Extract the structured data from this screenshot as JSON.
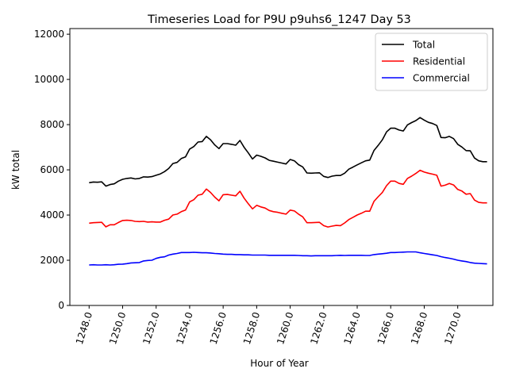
{
  "chart_data": {
    "type": "line",
    "title": "Timeseries Load for P9U p9uhs6_1247  Day 53",
    "xlabel": "Hour of Year",
    "ylabel": "kW total",
    "xlim": [
      1246.85,
      1272.1
    ],
    "ylim": [
      0,
      12250
    ],
    "xticks": [
      1248,
      1250,
      1252,
      1254,
      1256,
      1258,
      1260,
      1262,
      1264,
      1266,
      1268,
      1270
    ],
    "xtick_labels": [
      "1248.0",
      "1250.0",
      "1252.0",
      "1254.0",
      "1256.0",
      "1258.0",
      "1260.0",
      "1262.0",
      "1264.0",
      "1266.0",
      "1268.0",
      "1270.0"
    ],
    "yticks": [
      0,
      2000,
      4000,
      6000,
      8000,
      10000,
      12000
    ],
    "ytick_labels": [
      "0",
      "2000",
      "4000",
      "6000",
      "8000",
      "10000",
      "12000"
    ],
    "legend_position": "top-right",
    "grid": false,
    "x": [
      1248.0,
      1248.25,
      1248.5,
      1248.75,
      1249.0,
      1249.25,
      1249.5,
      1249.75,
      1250.0,
      1250.25,
      1250.5,
      1250.75,
      1251.0,
      1251.25,
      1251.5,
      1251.75,
      1252.0,
      1252.25,
      1252.5,
      1252.75,
      1253.0,
      1253.25,
      1253.5,
      1253.75,
      1254.0,
      1254.25,
      1254.5,
      1254.75,
      1255.0,
      1255.25,
      1255.5,
      1255.75,
      1256.0,
      1256.25,
      1256.5,
      1256.75,
      1257.0,
      1257.25,
      1257.5,
      1257.75,
      1258.0,
      1258.25,
      1258.5,
      1258.75,
      1259.0,
      1259.25,
      1259.5,
      1259.75,
      1260.0,
      1260.25,
      1260.5,
      1260.75,
      1261.0,
      1261.25,
      1261.5,
      1261.75,
      1262.0,
      1262.25,
      1262.5,
      1262.75,
      1263.0,
      1263.25,
      1263.5,
      1263.75,
      1264.0,
      1264.25,
      1264.5,
      1264.75,
      1265.0,
      1265.25,
      1265.5,
      1265.75,
      1266.0,
      1266.25,
      1266.5,
      1266.75,
      1267.0,
      1267.25,
      1267.5,
      1267.75,
      1268.0,
      1268.25,
      1268.5,
      1268.75,
      1269.0,
      1269.25,
      1269.5,
      1269.75,
      1270.0,
      1270.25,
      1270.5,
      1270.75,
      1271.0,
      1271.25,
      1271.5,
      1271.75
    ],
    "series": [
      {
        "name": "Total",
        "color": "#000000",
        "values": [
          5430,
          5460,
          5450,
          5470,
          5280,
          5350,
          5380,
          5500,
          5580,
          5620,
          5640,
          5600,
          5620,
          5690,
          5680,
          5700,
          5760,
          5820,
          5920,
          6060,
          6280,
          6330,
          6500,
          6570,
          6920,
          7030,
          7230,
          7250,
          7480,
          7330,
          7100,
          6940,
          7160,
          7160,
          7130,
          7090,
          7300,
          7000,
          6750,
          6480,
          6650,
          6600,
          6530,
          6420,
          6380,
          6340,
          6300,
          6260,
          6460,
          6400,
          6230,
          6130,
          5860,
          5850,
          5860,
          5870,
          5710,
          5660,
          5720,
          5750,
          5750,
          5850,
          6030,
          6120,
          6220,
          6310,
          6400,
          6430,
          6850,
          7080,
          7330,
          7680,
          7840,
          7840,
          7760,
          7720,
          7990,
          8090,
          8180,
          8310,
          8200,
          8100,
          8050,
          7960,
          7430,
          7420,
          7480,
          7380,
          7130,
          7010,
          6850,
          6840,
          6520,
          6400,
          6360,
          6360
        ]
      },
      {
        "name": "Residential",
        "color": "#ff0000",
        "values": [
          3640,
          3660,
          3670,
          3680,
          3480,
          3570,
          3570,
          3670,
          3760,
          3770,
          3760,
          3720,
          3710,
          3720,
          3690,
          3700,
          3690,
          3690,
          3770,
          3820,
          4000,
          4040,
          4150,
          4220,
          4580,
          4680,
          4880,
          4920,
          5150,
          5000,
          4790,
          4630,
          4900,
          4910,
          4880,
          4850,
          5050,
          4750,
          4500,
          4270,
          4430,
          4360,
          4310,
          4200,
          4150,
          4120,
          4080,
          4040,
          4220,
          4180,
          4040,
          3920,
          3660,
          3660,
          3670,
          3680,
          3530,
          3470,
          3510,
          3540,
          3530,
          3650,
          3800,
          3900,
          4000,
          4080,
          4170,
          4170,
          4600,
          4810,
          5000,
          5300,
          5500,
          5500,
          5400,
          5360,
          5620,
          5720,
          5840,
          5980,
          5900,
          5850,
          5810,
          5760,
          5280,
          5320,
          5400,
          5330,
          5130,
          5060,
          4920,
          4950,
          4660,
          4560,
          4540,
          4540
        ]
      },
      {
        "name": "Commercial",
        "color": "#0000ff",
        "values": [
          1790,
          1800,
          1790,
          1790,
          1800,
          1790,
          1800,
          1820,
          1830,
          1850,
          1880,
          1890,
          1900,
          1970,
          1990,
          2000,
          2080,
          2130,
          2150,
          2230,
          2270,
          2300,
          2340,
          2340,
          2340,
          2350,
          2340,
          2330,
          2330,
          2320,
          2300,
          2290,
          2270,
          2260,
          2260,
          2250,
          2250,
          2240,
          2240,
          2230,
          2230,
          2230,
          2230,
          2220,
          2220,
          2220,
          2220,
          2220,
          2220,
          2220,
          2210,
          2200,
          2200,
          2190,
          2200,
          2200,
          2200,
          2200,
          2200,
          2210,
          2220,
          2210,
          2220,
          2220,
          2220,
          2220,
          2210,
          2210,
          2250,
          2270,
          2290,
          2310,
          2340,
          2340,
          2350,
          2360,
          2370,
          2370,
          2370,
          2330,
          2300,
          2270,
          2240,
          2210,
          2160,
          2120,
          2090,
          2050,
          2000,
          1970,
          1940,
          1900,
          1870,
          1860,
          1850,
          1840
        ]
      }
    ]
  }
}
